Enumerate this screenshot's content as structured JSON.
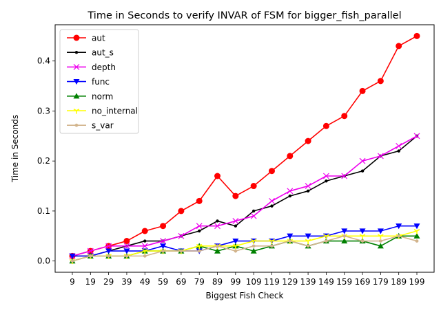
{
  "chart_data": {
    "type": "line",
    "title": "Time in Seconds to verify INVAR of FSM for bigger_fish_parallel",
    "xlabel": "Biggest Fish Check",
    "ylabel": "Time in Seconds",
    "categories": [
      "9",
      "19",
      "29",
      "39",
      "49",
      "59",
      "69",
      "79",
      "89",
      "99",
      "109",
      "119",
      "129",
      "139",
      "149",
      "159",
      "169",
      "179",
      "189",
      "199"
    ],
    "ylim": [
      -0.0225,
      0.4725
    ],
    "yticks": [
      0.0,
      0.1,
      0.2,
      0.3,
      0.4
    ],
    "ytick_labels": [
      "0.0",
      "0.1",
      "0.2",
      "0.3",
      "0.4"
    ],
    "legend_position": "upper-left",
    "series": [
      {
        "name": "aut",
        "color": "#ff0000",
        "marker": "circle",
        "values": [
          0.01,
          0.02,
          0.03,
          0.04,
          0.06,
          0.07,
          0.1,
          0.12,
          0.17,
          0.13,
          0.15,
          0.18,
          0.21,
          0.24,
          0.27,
          0.29,
          0.34,
          0.36,
          0.43,
          0.45
        ]
      },
      {
        "name": "aut_s",
        "color": "#000000",
        "marker": "dot",
        "values": [
          0.01,
          0.01,
          0.02,
          0.03,
          0.04,
          0.04,
          0.05,
          0.06,
          0.08,
          0.07,
          0.1,
          0.11,
          0.13,
          0.14,
          0.16,
          0.17,
          0.18,
          0.21,
          0.22,
          0.25
        ]
      },
      {
        "name": "depth",
        "color": "#ee00ee",
        "marker": "x",
        "values": [
          0.01,
          0.02,
          0.03,
          0.03,
          0.03,
          0.04,
          0.05,
          0.07,
          0.07,
          0.08,
          0.09,
          0.12,
          0.14,
          0.15,
          0.17,
          0.17,
          0.2,
          0.21,
          0.23,
          0.25
        ]
      },
      {
        "name": "func",
        "color": "#0000ff",
        "marker": "triangle-down",
        "values": [
          0.01,
          0.01,
          0.02,
          0.02,
          0.02,
          0.03,
          0.02,
          0.02,
          0.03,
          0.04,
          0.04,
          0.04,
          0.05,
          0.05,
          0.05,
          0.06,
          0.06,
          0.06,
          0.07,
          0.07
        ]
      },
      {
        "name": "norm",
        "color": "#008000",
        "marker": "triangle-up",
        "values": [
          0.0,
          0.01,
          0.01,
          0.01,
          0.02,
          0.02,
          0.02,
          0.03,
          0.02,
          0.03,
          0.02,
          0.03,
          0.04,
          0.03,
          0.04,
          0.04,
          0.04,
          0.03,
          0.05,
          0.05
        ]
      },
      {
        "name": "no_internal",
        "color": "#ffff00",
        "marker": "tri-down",
        "values": [
          0.0,
          0.01,
          0.01,
          0.01,
          0.02,
          0.02,
          0.02,
          0.03,
          0.03,
          0.03,
          0.04,
          0.04,
          0.04,
          0.04,
          0.05,
          0.05,
          0.05,
          0.05,
          0.05,
          0.06
        ]
      },
      {
        "name": "s_var",
        "color": "#d2b48c",
        "marker": "hexagon",
        "values": [
          0.0,
          0.01,
          0.01,
          0.01,
          0.01,
          0.02,
          0.02,
          0.02,
          0.03,
          0.02,
          0.03,
          0.03,
          0.04,
          0.03,
          0.04,
          0.05,
          0.04,
          0.04,
          0.05,
          0.04
        ]
      }
    ]
  }
}
